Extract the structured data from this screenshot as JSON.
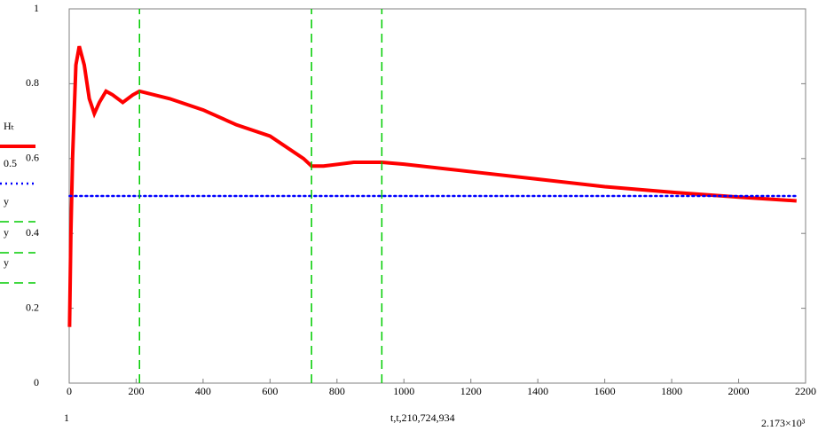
{
  "chart_data": {
    "type": "line",
    "x_label": "t,t,210,724,934",
    "x_min_label": "1",
    "x_max_label": "2.173×10³",
    "xlim": [
      0,
      2200
    ],
    "xticks": [
      0,
      200,
      400,
      600,
      800,
      1000,
      1200,
      1400,
      1600,
      1800,
      2000,
      2200
    ],
    "ylim": [
      0,
      1
    ],
    "yticks": [
      0,
      0.2,
      0.4,
      0.6,
      0.8,
      1
    ],
    "series": [
      {
        "name": "Hₜ",
        "color": "#ff0000",
        "style": "solid",
        "x": [
          1,
          5,
          10,
          20,
          30,
          45,
          60,
          75,
          90,
          110,
          130,
          160,
          190,
          210,
          300,
          400,
          500,
          600,
          700,
          724,
          760,
          850,
          934,
          1000,
          1200,
          1400,
          1600,
          1800,
          2000,
          2173
        ],
        "values": [
          0.15,
          0.4,
          0.6,
          0.85,
          0.9,
          0.85,
          0.76,
          0.72,
          0.75,
          0.78,
          0.77,
          0.75,
          0.77,
          0.78,
          0.76,
          0.73,
          0.69,
          0.66,
          0.6,
          0.58,
          0.58,
          0.59,
          0.59,
          0.585,
          0.565,
          0.545,
          0.525,
          0.51,
          0.497,
          0.487
        ]
      },
      {
        "name": "0.5",
        "color": "#0000ff",
        "style": "dotted",
        "x": [
          1,
          2173
        ],
        "values": [
          0.5,
          0.5
        ]
      },
      {
        "name": "y",
        "color": "#00cc00",
        "style": "dashed",
        "x": [
          210,
          210
        ],
        "values": [
          0,
          1
        ]
      },
      {
        "name": "y",
        "color": "#00cc00",
        "style": "dashed",
        "x": [
          724,
          724
        ],
        "values": [
          0,
          1
        ]
      },
      {
        "name": "y",
        "color": "#00cc00",
        "style": "dashed",
        "x": [
          934,
          934
        ],
        "values": [
          0,
          1
        ]
      }
    ]
  }
}
